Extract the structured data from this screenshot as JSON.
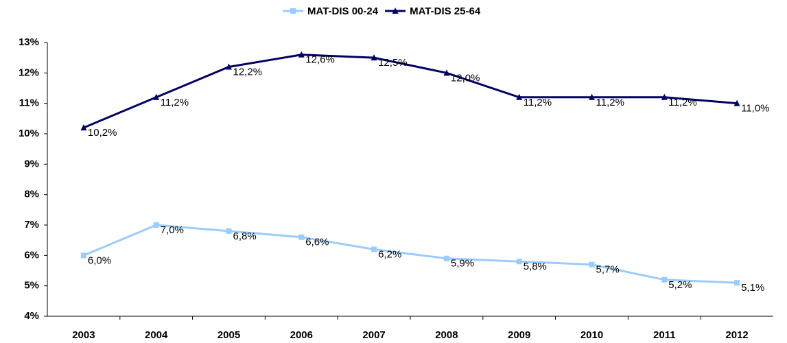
{
  "chart_data": {
    "type": "line",
    "categories": [
      "2003",
      "2004",
      "2005",
      "2006",
      "2007",
      "2008",
      "2009",
      "2010",
      "2011",
      "2012"
    ],
    "series": [
      {
        "name": "MAT-DIS 00-24",
        "color": "#99ccff",
        "marker": "square",
        "values": [
          6.0,
          7.0,
          6.8,
          6.6,
          6.2,
          5.9,
          5.8,
          5.7,
          5.2,
          5.1
        ],
        "value_labels": [
          "6,0%",
          "7,0%",
          "6,8%",
          "6,6%",
          "6,2%",
          "5,9%",
          "5,8%",
          "5,7%",
          "5,2%",
          "5,1%"
        ]
      },
      {
        "name": "MAT-DIS 25-64",
        "color": "#000066",
        "marker": "triangle",
        "values": [
          10.2,
          11.2,
          12.2,
          12.6,
          12.5,
          12.0,
          11.2,
          11.2,
          11.2,
          11.0
        ],
        "value_labels": [
          "10,2%",
          "11,2%",
          "12,2%",
          "12,6%",
          "12,5%",
          "12,0%",
          "11,2%",
          "11,2%",
          "11,2%",
          "11,0%"
        ]
      }
    ],
    "ylim": [
      4,
      13
    ],
    "yticks": [
      {
        "value": 4,
        "label": "4%"
      },
      {
        "value": 5,
        "label": "5%"
      },
      {
        "value": 6,
        "label": "6%"
      },
      {
        "value": 7,
        "label": "7%"
      },
      {
        "value": 8,
        "label": "8%"
      },
      {
        "value": 9,
        "label": "9%"
      },
      {
        "value": 10,
        "label": "10%"
      },
      {
        "value": 11,
        "label": "11%"
      },
      {
        "value": 12,
        "label": "12%"
      },
      {
        "value": 13,
        "label": "13%"
      }
    ],
    "grid": false,
    "legend": "top"
  }
}
